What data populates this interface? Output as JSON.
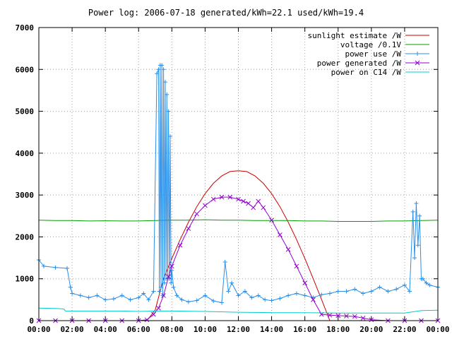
{
  "chart_data": {
    "type": "line",
    "title": "Power log: 2006-07-18 generated/kWh=22.1 used/kWh=19.4",
    "xlabel": "",
    "ylabel": "",
    "x_tick_labels": [
      "00:00",
      "02:00",
      "04:00",
      "06:00",
      "08:00",
      "10:00",
      "12:00",
      "14:00",
      "16:00",
      "18:00",
      "20:00",
      "22:00",
      "00:00"
    ],
    "xlim_hours": [
      0,
      24
    ],
    "ylim": [
      0,
      7000
    ],
    "y_ticks": [
      0,
      1000,
      2000,
      3000,
      4000,
      5000,
      6000,
      7000
    ],
    "grid": true,
    "legend_position": "top-right",
    "series": [
      {
        "name": "sunlight estimate /W",
        "color": "#cc0000",
        "style": "line",
        "x": [
          6.5,
          7.0,
          7.5,
          8.0,
          8.5,
          9.0,
          9.5,
          10.0,
          10.5,
          11.0,
          11.5,
          12.0,
          12.5,
          13.0,
          13.5,
          14.0,
          14.5,
          15.0,
          15.5,
          16.0,
          16.5,
          17.0,
          17.5
        ],
        "y": [
          0,
          256,
          1005,
          1482,
          1937,
          2353,
          2721,
          3033,
          3280,
          3457,
          3561,
          3580,
          3561,
          3457,
          3280,
          3033,
          2721,
          2353,
          1937,
          1482,
          1005,
          510,
          0
        ]
      },
      {
        "name": "voltage /0.1V",
        "color": "#00a000",
        "style": "line",
        "x": [
          0,
          1,
          2,
          3,
          4,
          5,
          6,
          7,
          8,
          9,
          10,
          11,
          12,
          13,
          14,
          15,
          16,
          17,
          18,
          19,
          20,
          21,
          22,
          23,
          24
        ],
        "y": [
          2400,
          2390,
          2390,
          2380,
          2385,
          2380,
          2380,
          2390,
          2400,
          2400,
          2410,
          2400,
          2400,
          2390,
          2390,
          2390,
          2380,
          2380,
          2370,
          2370,
          2370,
          2380,
          2380,
          2390,
          2400
        ]
      },
      {
        "name": "power use /W",
        "color": "#2a8fe8",
        "style": "line-plus",
        "x": [
          0.0,
          0.3,
          1.0,
          1.7,
          1.9,
          2.0,
          2.5,
          3.0,
          3.5,
          4.0,
          4.5,
          5.0,
          5.5,
          6.0,
          6.3,
          6.6,
          6.9,
          7.1,
          7.2,
          7.25,
          7.3,
          7.35,
          7.4,
          7.45,
          7.5,
          7.55,
          7.6,
          7.65,
          7.7,
          7.75,
          7.8,
          7.85,
          7.9,
          7.95,
          8.0,
          8.1,
          8.3,
          8.6,
          9.0,
          9.5,
          10.0,
          10.5,
          11.0,
          11.2,
          11.4,
          11.6,
          12.0,
          12.4,
          12.8,
          13.2,
          13.6,
          14.0,
          14.5,
          15.0,
          15.5,
          16.0,
          16.5,
          17.0,
          17.5,
          18.0,
          18.5,
          19.0,
          19.5,
          20.0,
          20.5,
          21.0,
          21.5,
          22.0,
          22.3,
          22.5,
          22.6,
          22.7,
          22.8,
          22.9,
          23.0,
          23.1,
          23.3,
          23.5,
          24.0
        ],
        "y": [
          1450,
          1300,
          1270,
          1250,
          800,
          650,
          600,
          550,
          600,
          500,
          520,
          600,
          500,
          550,
          650,
          500,
          700,
          5900,
          6000,
          700,
          6100,
          800,
          6100,
          600,
          6000,
          900,
          5700,
          1000,
          5400,
          1000,
          5000,
          1000,
          4400,
          900,
          1200,
          800,
          600,
          500,
          450,
          480,
          600,
          470,
          430,
          1400,
          700,
          900,
          600,
          700,
          550,
          600,
          500,
          480,
          530,
          600,
          650,
          600,
          550,
          620,
          650,
          700,
          700,
          750,
          650,
          700,
          800,
          700,
          750,
          850,
          700,
          2600,
          1500,
          2800,
          1800,
          2500,
          1000,
          1000,
          900,
          850,
          800
        ]
      },
      {
        "name": "power generated /W",
        "color": "#9400d3",
        "style": "line-x",
        "x": [
          0.0,
          1.0,
          2.0,
          3.0,
          4.0,
          5.0,
          6.0,
          6.5,
          6.9,
          7.2,
          7.5,
          7.8,
          8.0,
          8.5,
          9.0,
          9.5,
          10.0,
          10.5,
          11.0,
          11.5,
          12.0,
          12.3,
          12.6,
          12.9,
          13.2,
          13.5,
          14.0,
          14.5,
          15.0,
          15.5,
          16.0,
          16.5,
          17.0,
          17.5,
          18.0,
          18.5,
          19.0,
          19.5,
          20.0,
          21.0,
          22.0,
          23.0,
          24.0
        ],
        "y": [
          0,
          0,
          0,
          0,
          0,
          0,
          0,
          20,
          150,
          300,
          600,
          1050,
          1300,
          1800,
          2200,
          2550,
          2750,
          2900,
          2950,
          2950,
          2900,
          2850,
          2800,
          2700,
          2850,
          2700,
          2400,
          2050,
          1700,
          1300,
          900,
          500,
          150,
          130,
          120,
          110,
          100,
          60,
          20,
          0,
          0,
          0,
          0
        ]
      },
      {
        "name": "power on C14 /W",
        "color": "#00cccc",
        "style": "line",
        "x": [
          0.0,
          1.0,
          1.5,
          1.6,
          3.0,
          5.0,
          6.0,
          7.0,
          8.0,
          10.0,
          12.0,
          14.0,
          16.0,
          18.0,
          20.0,
          22.0,
          23.0,
          24.0
        ],
        "y": [
          300,
          290,
          280,
          230,
          230,
          230,
          220,
          230,
          230,
          220,
          200,
          190,
          190,
          180,
          180,
          180,
          240,
          250
        ]
      }
    ]
  }
}
